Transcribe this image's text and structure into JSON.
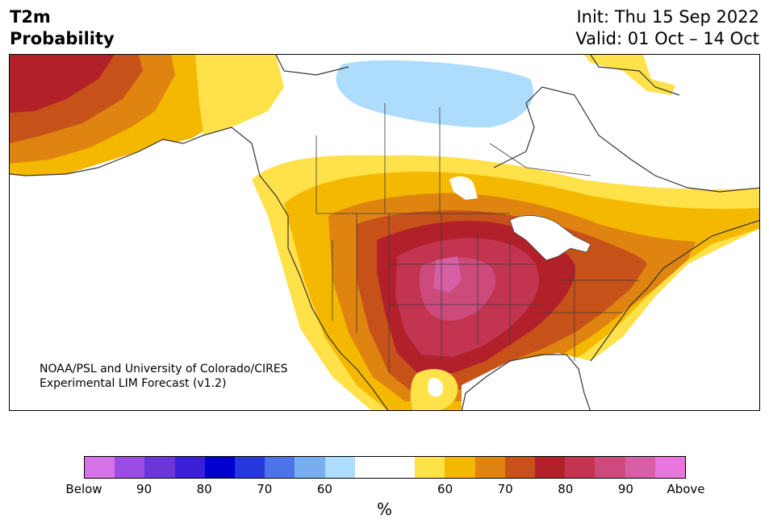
{
  "header": {
    "title_line1": "T2m",
    "title_line2": "Probability",
    "init": "Init: Thu 15 Sep 2022",
    "valid": "Valid: 01 Oct – 14 Oct"
  },
  "map": {
    "credit_line1": "NOAA/PSL and University of Colorado/CIRES",
    "credit_line2": "Experimental LIM Forecast (v1.2)"
  },
  "colorbar": {
    "colors": [
      "#d473e8",
      "#9a4de0",
      "#6a36d8",
      "#3b1fd6",
      "#0000cc",
      "#2638dc",
      "#4d73e8",
      "#78aeef",
      "#addcfc",
      "#ffffff",
      "#ffffff",
      "#ffe14a",
      "#f5b800",
      "#df8410",
      "#c75219",
      "#b2202a",
      "#c23450",
      "#cc4a7c",
      "#d75fa6",
      "#e876dd"
    ],
    "ticks": [
      "Below",
      "90",
      "80",
      "70",
      "60",
      "60",
      "70",
      "80",
      "90",
      "Above"
    ],
    "unit": "%"
  },
  "palette": {
    "water": "#ffffff",
    "land_neutral": "#ffffff",
    "p60": "#ffe14a",
    "p70": "#f5b800",
    "p75": "#df8410",
    "p80": "#c75219",
    "p85": "#b2202a",
    "p90": "#c23450",
    "p95": "#cc4a7c",
    "below60": "#addcfc"
  }
}
